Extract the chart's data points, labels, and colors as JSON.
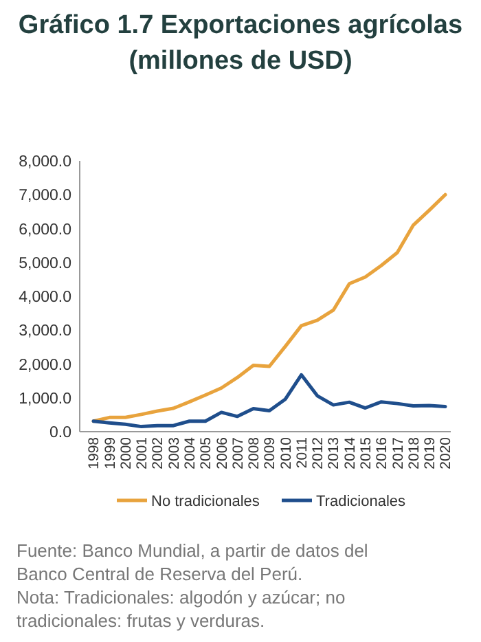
{
  "chart_data": {
    "type": "line",
    "title": "Gráfico 1.7 Exportaciones agrícolas\n(millones de USD)",
    "categories": [
      "1998",
      "1999",
      "2000",
      "2001",
      "2002",
      "2003",
      "2004",
      "2005",
      "2006",
      "2007",
      "2008",
      "2009",
      "2010",
      "2011",
      "2012",
      "2013",
      "2014",
      "2015",
      "2016",
      "2017",
      "2018",
      "2019",
      "2020"
    ],
    "series": [
      {
        "name": "No tradicionales",
        "color": "#e8a33d",
        "values": [
          310,
          420,
          420,
          510,
          610,
          690,
          880,
          1080,
          1290,
          1600,
          1960,
          1930,
          2520,
          3130,
          3290,
          3590,
          4370,
          4570,
          4910,
          5290,
          6100,
          6540,
          7000
        ]
      },
      {
        "name": "Tradicionales",
        "color": "#1f4e8c",
        "values": [
          310,
          260,
          220,
          150,
          180,
          180,
          310,
          310,
          570,
          450,
          680,
          620,
          960,
          1680,
          1060,
          790,
          870,
          700,
          880,
          830,
          760,
          770,
          740
        ]
      }
    ],
    "ylim": [
      0,
      8000
    ],
    "yticks": [
      {
        "value": 0,
        "label": "0.0"
      },
      {
        "value": 1000,
        "label": "1,000.0"
      },
      {
        "value": 2000,
        "label": "2,000.0"
      },
      {
        "value": 3000,
        "label": "3,000.0"
      },
      {
        "value": 4000,
        "label": "4,000.0"
      },
      {
        "value": 5000,
        "label": "5,000.0"
      },
      {
        "value": 6000,
        "label": "6,000.0"
      },
      {
        "value": 7000,
        "label": "7,000.0"
      },
      {
        "value": 8000,
        "label": "8,000.0"
      }
    ],
    "grid": false,
    "legend": "bottom",
    "marker": "none",
    "line_style": "solid",
    "annotations": [
      "Fuente: Banco Mundial, a partir de datos del Banco Central de Reserva del Perú.",
      "Nota: Tradicionales: algodón y azúcar; no tradicionales: frutas y verduras."
    ]
  }
}
